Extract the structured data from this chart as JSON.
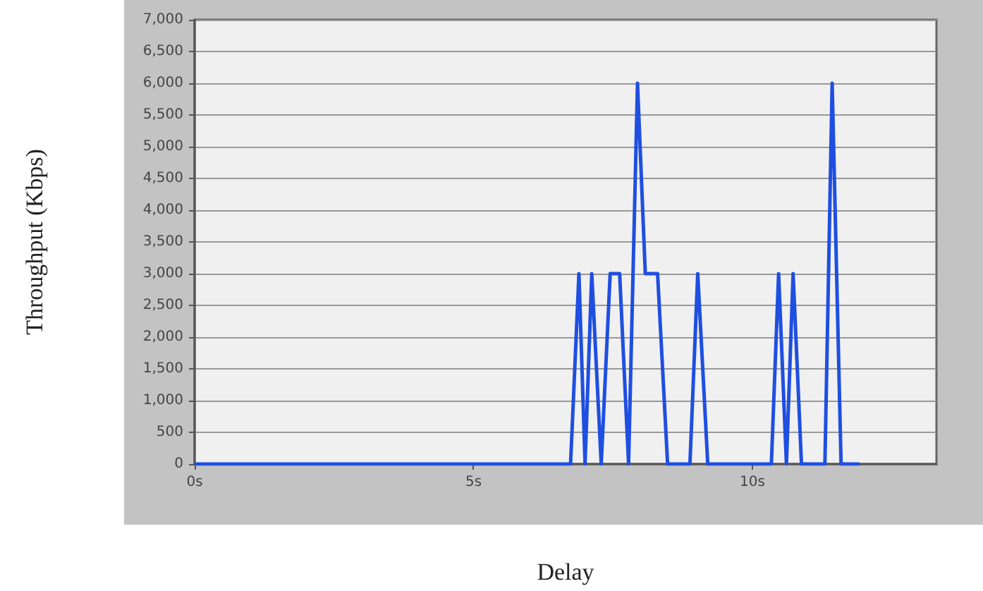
{
  "chart_data": {
    "type": "line",
    "xlabel": "Delay",
    "ylabel": "Throughput (Kbps)",
    "x": [
      0,
      6.74,
      6.89,
      7.0,
      7.12,
      7.29,
      7.45,
      7.62,
      7.78,
      7.94,
      8.08,
      8.3,
      8.48,
      8.88,
      9.02,
      9.2,
      10.34,
      10.47,
      10.61,
      10.73,
      10.88,
      11.3,
      11.43,
      11.59,
      11.92
    ],
    "series": [
      {
        "color": "#1f4fe0",
        "values": [
          0,
          0,
          3000,
          0,
          3000,
          0,
          3000,
          3000,
          0,
          6000,
          3000,
          3000,
          0,
          0,
          3000,
          0,
          0,
          3000,
          0,
          3000,
          0,
          0,
          6000,
          0,
          0
        ]
      }
    ],
    "xlim": [
      0,
      13.3
    ],
    "xticks": [
      {
        "value": 0,
        "label": "0s"
      },
      {
        "value": 5,
        "label": "5s"
      },
      {
        "value": 10,
        "label": "10s"
      }
    ],
    "ylim": [
      0,
      7000
    ],
    "yticks": [
      0,
      500,
      {
        "value": 1000,
        "label": "1,000"
      },
      {
        "value": 1500,
        "label": "1,500"
      },
      {
        "value": 2000,
        "label": "2,000"
      },
      {
        "value": 2500,
        "label": "2,500"
      },
      {
        "value": 3000,
        "label": "3,000"
      },
      {
        "value": 3500,
        "label": "3,500"
      },
      {
        "value": 4000,
        "label": "4,000"
      },
      {
        "value": 4500,
        "label": "4,500"
      },
      {
        "value": 5000,
        "label": "5,000"
      },
      {
        "value": 5500,
        "label": "5,500"
      },
      {
        "value": 6000,
        "label": "6,000"
      },
      {
        "value": 6500,
        "label": "6,500"
      },
      {
        "value": 7000,
        "label": "7,000"
      }
    ],
    "grid": "y",
    "marker": "none",
    "line_style": "solid"
  }
}
